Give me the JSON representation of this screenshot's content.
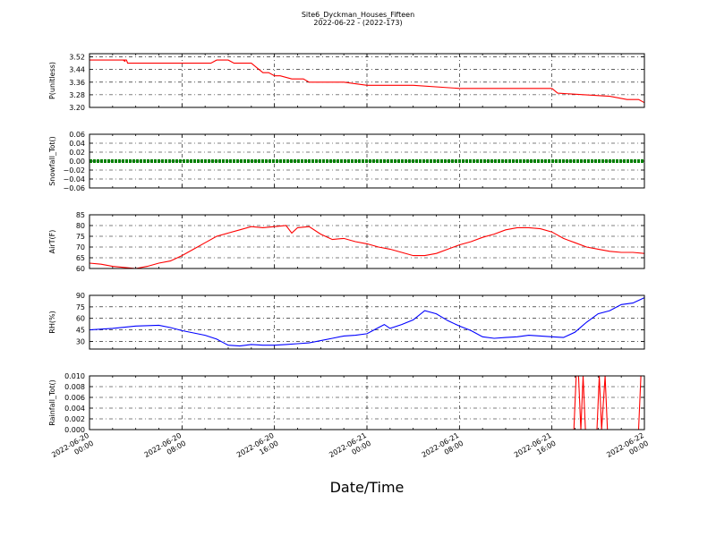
{
  "title": "Site6_Dyckman_Houses_Fifteen",
  "subtitle": "2022-06-22 - (2022-173)",
  "xlabel": "Date/Time",
  "colors": {
    "red": "#ff0000",
    "green": "#008000",
    "blue": "#0000ff",
    "axis": "#000000",
    "grid": "#000000"
  },
  "x_ticks": [
    {
      "line1": "2022-06-20",
      "line2": "00:00"
    },
    {
      "line1": "2022-06-20",
      "line2": "08:00"
    },
    {
      "line1": "2022-06-20",
      "line2": "16:00"
    },
    {
      "line1": "2022-06-21",
      "line2": "00:00"
    },
    {
      "line1": "2022-06-21",
      "line2": "08:00"
    },
    {
      "line1": "2022-06-21",
      "line2": "16:00"
    },
    {
      "line1": "2022-06-22",
      "line2": "00:00"
    }
  ],
  "chart_data": [
    {
      "type": "line",
      "ylabel": "P(unitless)",
      "ylim": [
        3.2,
        3.54
      ],
      "yticks": [
        3.52,
        3.44,
        3.36,
        3.28,
        3.2
      ],
      "ytick_labels": [
        "3.52",
        "3.44",
        "3.36",
        "3.28",
        "3.20"
      ],
      "grid": true,
      "series": [
        {
          "color": "#ff0000",
          "x_hours": [
            0,
            3,
            3.1,
            2.9,
            3.2,
            3.3,
            10.5,
            11,
            12,
            12.5,
            13,
            14,
            14.5,
            15,
            15.5,
            16,
            16.5,
            17.5,
            18.5,
            19,
            20.5,
            22,
            24,
            26,
            28,
            32,
            37,
            40,
            40.5,
            45,
            46.5,
            47.5,
            48
          ],
          "values": [
            3.5,
            3.5,
            3.49,
            3.5,
            3.5,
            3.48,
            3.48,
            3.5,
            3.5,
            3.48,
            3.48,
            3.48,
            3.45,
            3.42,
            3.42,
            3.4,
            3.4,
            3.38,
            3.38,
            3.36,
            3.36,
            3.36,
            3.34,
            3.34,
            3.34,
            3.32,
            3.32,
            3.32,
            3.29,
            3.27,
            3.25,
            3.25,
            3.23
          ]
        }
      ]
    },
    {
      "type": "line",
      "ylabel": "Snowfall_Tot()",
      "ylim": [
        -0.06,
        0.06
      ],
      "yticks": [
        0.06,
        0.04,
        0.02,
        0.0,
        -0.02,
        -0.04,
        -0.06
      ],
      "ytick_labels": [
        "0.06",
        "0.04",
        "0.02",
        "0.00",
        "−0.02",
        "−0.04",
        "−0.06"
      ],
      "grid": true,
      "series": [
        {
          "color": "#008000",
          "x_hours": [
            0,
            48
          ],
          "values": [
            0,
            0
          ]
        }
      ]
    },
    {
      "type": "line",
      "ylabel": "AirT(F)",
      "ylim": [
        60,
        85
      ],
      "yticks": [
        85,
        80,
        75,
        70,
        65,
        60
      ],
      "ytick_labels": [
        "85",
        "80",
        "75",
        "70",
        "65",
        "60"
      ],
      "grid": true,
      "series": [
        {
          "color": "#ff0000",
          "x_hours": [
            0,
            1,
            2,
            3,
            4,
            5,
            6,
            7,
            8,
            9,
            10,
            11,
            12,
            13,
            14,
            15,
            16,
            17,
            17.5,
            18,
            19,
            20,
            21,
            22,
            23,
            24,
            25,
            26,
            27,
            28,
            29,
            30,
            31,
            32,
            33,
            34,
            35,
            36,
            37,
            38,
            39,
            40,
            41,
            42,
            43,
            44,
            45,
            46,
            47,
            48
          ],
          "values": [
            62.5,
            62,
            61,
            60.5,
            60,
            61,
            62.5,
            63.5,
            66,
            69,
            72,
            75,
            76.5,
            78,
            79.5,
            79,
            79.5,
            80,
            76.5,
            79,
            79.5,
            76,
            73.5,
            74,
            72.5,
            71.5,
            70,
            69,
            67.5,
            66,
            66,
            67,
            69,
            71,
            72.5,
            74.5,
            76,
            78,
            79,
            79,
            78.5,
            77,
            74,
            72,
            70,
            69,
            68,
            67.5,
            67.5,
            67
          ]
        }
      ]
    },
    {
      "type": "line",
      "ylabel": "RH(%)",
      "ylim": [
        20,
        90
      ],
      "yticks": [
        90,
        75,
        60,
        45,
        30
      ],
      "ytick_labels": [
        "90",
        "75",
        "60",
        "45",
        "30"
      ],
      "grid": true,
      "series": [
        {
          "color": "#0000ff",
          "x_hours": [
            0,
            2,
            4,
            6,
            7,
            8,
            9,
            10,
            11,
            11.5,
            12,
            13,
            14,
            15,
            16,
            17,
            18,
            19,
            20,
            21,
            22,
            23,
            24,
            25,
            25.5,
            26,
            27,
            28,
            29,
            30,
            31,
            32,
            33,
            34,
            35,
            36,
            37,
            38,
            39,
            40,
            41,
            42,
            43,
            44,
            45,
            46,
            47,
            48
          ],
          "values": [
            45,
            47,
            50,
            51,
            48,
            44,
            41,
            38,
            33,
            29,
            25,
            24,
            26,
            25,
            25,
            26,
            27,
            28,
            31,
            34,
            37,
            38,
            40,
            48,
            52,
            47,
            52,
            58,
            70,
            66,
            57,
            50,
            44,
            36,
            34,
            35,
            36,
            38,
            37,
            36,
            35,
            42,
            55,
            66,
            70,
            78,
            80,
            87
          ]
        }
      ]
    },
    {
      "type": "line",
      "ylabel": "Rainfall_Tot()",
      "ylim": [
        0,
        0.01
      ],
      "yticks": [
        0.01,
        0.008,
        0.006,
        0.004,
        0.002,
        0.0
      ],
      "ytick_labels": [
        "0.010",
        "0.008",
        "0.006",
        "0.004",
        "0.002",
        "0.000"
      ],
      "grid": true,
      "series": [
        {
          "color": "#ff0000",
          "x_hours": [
            0,
            41.9,
            42.1,
            42.3,
            42.5,
            42.7,
            42.9,
            43.9,
            44.1,
            44.3,
            44.6,
            44.8,
            45.0,
            47.5,
            47.7
          ],
          "values": [
            0,
            0,
            0.01,
            0.01,
            0,
            0.01,
            0,
            0,
            0.01,
            0,
            0.01,
            0,
            0,
            0,
            0.01
          ]
        }
      ]
    }
  ]
}
